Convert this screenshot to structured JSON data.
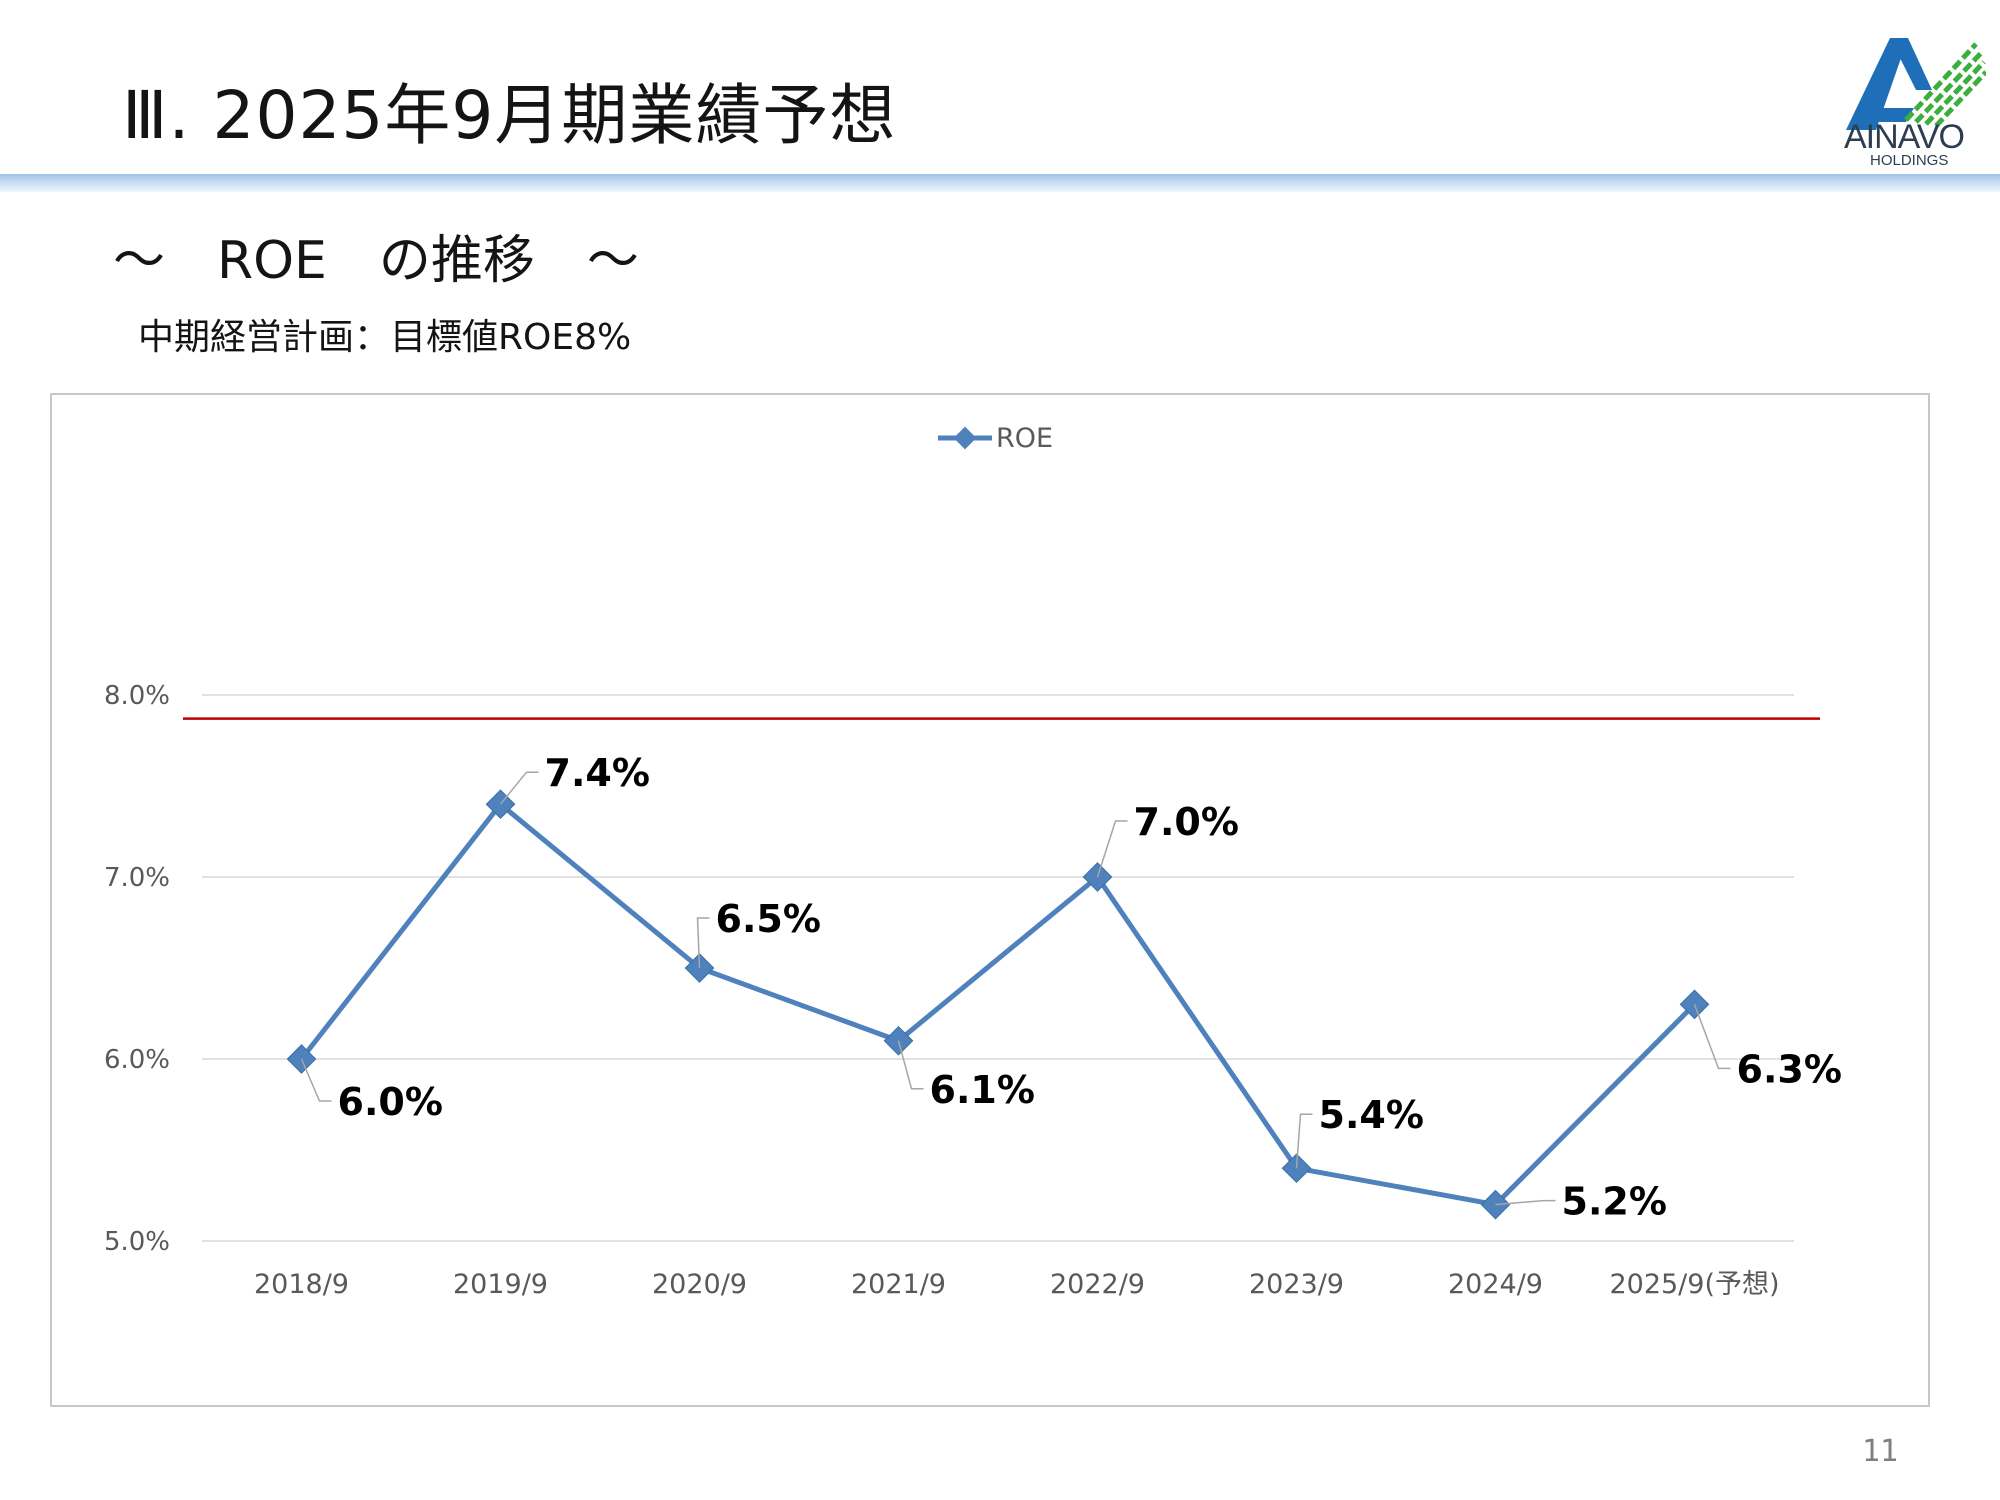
{
  "header": {
    "title": "Ⅲ. 2025年9月期業績予想",
    "logo_text": "AINAVO",
    "logo_subtext": "HOLDINGS"
  },
  "subtitle": "～　ROE　の推移　～",
  "target_note": "中期経営計画：目標値ROE8%",
  "page_number": "11",
  "colors": {
    "series": "#4f81bd",
    "target_line": "#c00000",
    "header_band": "#9dc3e6",
    "logo_blue": "#1f6fb8",
    "logo_green": "#3cae3c"
  },
  "chart_data": {
    "type": "line",
    "legend": {
      "position": "top",
      "entries": [
        "ROE"
      ]
    },
    "categories": [
      "2018/9",
      "2019/9",
      "2020/9",
      "2021/9",
      "2022/9",
      "2023/9",
      "2024/9",
      "2025/9(予想)"
    ],
    "series": [
      {
        "name": "ROE",
        "values": [
          6.0,
          7.4,
          6.5,
          6.1,
          7.0,
          5.4,
          5.2,
          6.3
        ],
        "labels": [
          "6.0%",
          "7.4%",
          "6.5%",
          "6.1%",
          "7.0%",
          "5.4%",
          "5.2%",
          "6.3%"
        ]
      }
    ],
    "target_line": {
      "value": 7.87
    },
    "ylim": [
      5.0,
      8.0
    ],
    "yticks": [
      5.0,
      6.0,
      7.0,
      8.0
    ],
    "ytick_labels": [
      "5.0%",
      "6.0%",
      "7.0%",
      "8.0%"
    ],
    "grid": true,
    "xlabel": "",
    "ylabel": ""
  }
}
